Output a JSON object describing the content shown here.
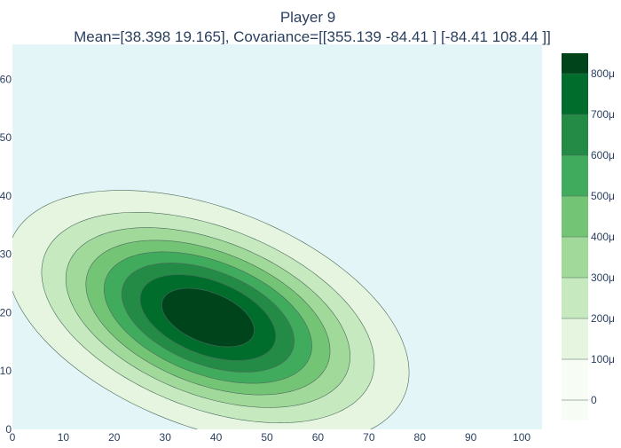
{
  "chart_data": {
    "type": "contour",
    "title": "Player 9",
    "subtitle": "Mean=[38.398 19.165], Covariance=[[355.139 -84.41 ]  [-84.41  108.44 ]]",
    "xlabel": "",
    "ylabel": "",
    "xlim": [
      0,
      104
    ],
    "ylim": [
      0,
      66
    ],
    "x_ticks": [
      "0",
      "10",
      "20",
      "30",
      "40",
      "50",
      "60",
      "70",
      "80",
      "90",
      "100"
    ],
    "x_tick_values": [
      0,
      10,
      20,
      30,
      40,
      50,
      60,
      70,
      80,
      90,
      100
    ],
    "y_ticks": [
      "0",
      "10",
      "20",
      "30",
      "40",
      "50",
      "60"
    ],
    "y_tick_values": [
      0,
      10,
      20,
      30,
      40,
      50,
      60
    ],
    "distribution": {
      "mean": [
        38.398,
        19.165
      ],
      "covariance": [
        [
          355.139,
          -84.41
        ],
        [
          -84.41,
          108.44
        ]
      ]
    },
    "contour_levels": [
      0.0001,
      0.0002,
      0.0003,
      0.0004,
      0.0005,
      0.0006,
      0.0007,
      0.0008
    ],
    "colorbar": {
      "tick_labels": [
        "0",
        "100μ",
        "200μ",
        "300μ",
        "400μ",
        "500μ",
        "600μ",
        "700μ",
        "800μ"
      ],
      "tick_values": [
        0,
        0.0001,
        0.0002,
        0.0003,
        0.0004,
        0.0005,
        0.0006,
        0.0007,
        0.0008
      ],
      "range": [
        -5e-05,
        0.00085
      ]
    },
    "colors": [
      "#f7fcf5",
      "#e5f5e0",
      "#c7e9c0",
      "#a1d99b",
      "#74c476",
      "#41ab5d",
      "#238b45",
      "#006d2c",
      "#00441b"
    ],
    "line_color": "#4a6a5a",
    "grid": false,
    "legend": "colorbar-right"
  }
}
